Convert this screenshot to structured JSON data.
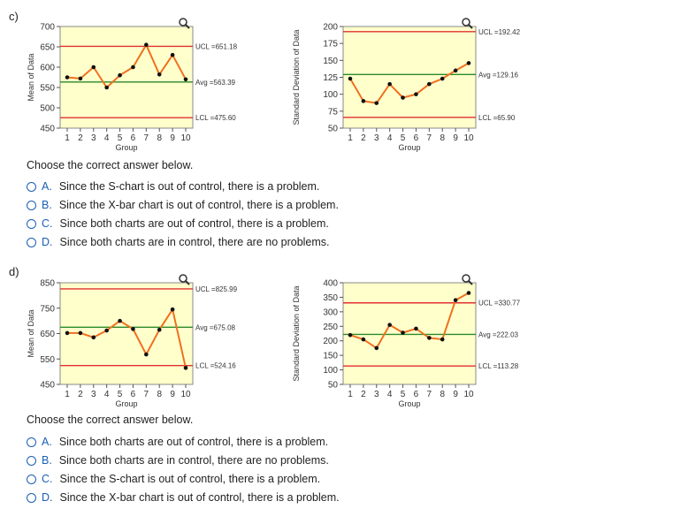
{
  "sections": [
    {
      "label": "c)",
      "prompt": "Choose the correct answer below.",
      "choices": [
        {
          "letter": "A.",
          "text": "Since the S-chart is out of control, there is a problem."
        },
        {
          "letter": "B.",
          "text": "Since the X-bar chart is out of control, there is a problem."
        },
        {
          "letter": "C.",
          "text": "Since both charts are out of control, there is a problem."
        },
        {
          "letter": "D.",
          "text": "Since both charts are in control, there are no problems."
        }
      ]
    },
    {
      "label": "d)",
      "prompt": "Choose the correct answer below.",
      "choices": [
        {
          "letter": "A.",
          "text": "Since both charts are out of control, there is a problem."
        },
        {
          "letter": "B.",
          "text": "Since both charts are in control, there are no problems."
        },
        {
          "letter": "C.",
          "text": "Since the S-chart is out of control, there is a problem."
        },
        {
          "letter": "D.",
          "text": "Since the X-bar chart is out of control, there is a problem."
        }
      ]
    }
  ],
  "colors": {
    "plot_bg": "#ffffcc",
    "series": "#f07020",
    "limit": "#e03030",
    "avg": "#2a8a2a",
    "choice_letter": "#1a5fb4"
  },
  "zoom_icon": "magnifier-zoom-icon",
  "chart_data": [
    {
      "id": "c-xbar",
      "type": "line",
      "ylabel": "Mean of Data",
      "xlabel": "Group",
      "x": [
        1,
        2,
        3,
        4,
        5,
        6,
        7,
        8,
        9,
        10
      ],
      "values": [
        575,
        572,
        600,
        550,
        580,
        600,
        655,
        582,
        630,
        570
      ],
      "ylim": [
        450,
        700
      ],
      "yticks": [
        450,
        500,
        550,
        600,
        650,
        700
      ],
      "ucl": 651.18,
      "avg": 563.39,
      "lcl": 475.6,
      "ucl_label": "UCL =651.18",
      "avg_label": "Avg =563.39",
      "lcl_label": "LCL =475.60"
    },
    {
      "id": "c-s",
      "type": "line",
      "ylabel": "Standard Deviation of Data",
      "xlabel": "Group",
      "x": [
        1,
        2,
        3,
        4,
        5,
        6,
        7,
        8,
        9,
        10
      ],
      "values": [
        123,
        90,
        87,
        115,
        95,
        100,
        115,
        123,
        135,
        146
      ],
      "ylim": [
        50,
        200
      ],
      "yticks": [
        50,
        75,
        100,
        125,
        150,
        175,
        200
      ],
      "ucl": 192.42,
      "avg": 129.16,
      "lcl": 65.9,
      "ucl_label": "UCL =192.42",
      "avg_label": "Avg =129.16",
      "lcl_label": "LCL =65.90"
    },
    {
      "id": "d-xbar",
      "type": "line",
      "ylabel": "Mean of Data",
      "xlabel": "Group",
      "x": [
        1,
        2,
        3,
        4,
        5,
        6,
        7,
        8,
        9,
        10
      ],
      "values": [
        652,
        652,
        635,
        662,
        700,
        668,
        568,
        665,
        745,
        515
      ],
      "ylim": [
        450,
        850
      ],
      "yticks": [
        450,
        550,
        650,
        750,
        850
      ],
      "ucl": 825.99,
      "avg": 675.08,
      "lcl": 524.16,
      "ucl_label": "UCL =825.99",
      "avg_label": "Avg =675.08",
      "lcl_label": "LCL =524.16"
    },
    {
      "id": "d-s",
      "type": "line",
      "ylabel": "Standard Deviation of Data",
      "xlabel": "Group",
      "x": [
        1,
        2,
        3,
        4,
        5,
        6,
        7,
        8,
        9,
        10
      ],
      "values": [
        220,
        205,
        175,
        255,
        228,
        242,
        210,
        205,
        340,
        365
      ],
      "ylim": [
        50,
        400
      ],
      "yticks": [
        50,
        100,
        150,
        200,
        250,
        300,
        350,
        400
      ],
      "ucl": 330.77,
      "avg": 222.03,
      "lcl": 113.28,
      "ucl_label": "UCL =330.77",
      "avg_label": "Avg =222.03",
      "lcl_label": "LCL =113.28"
    }
  ]
}
